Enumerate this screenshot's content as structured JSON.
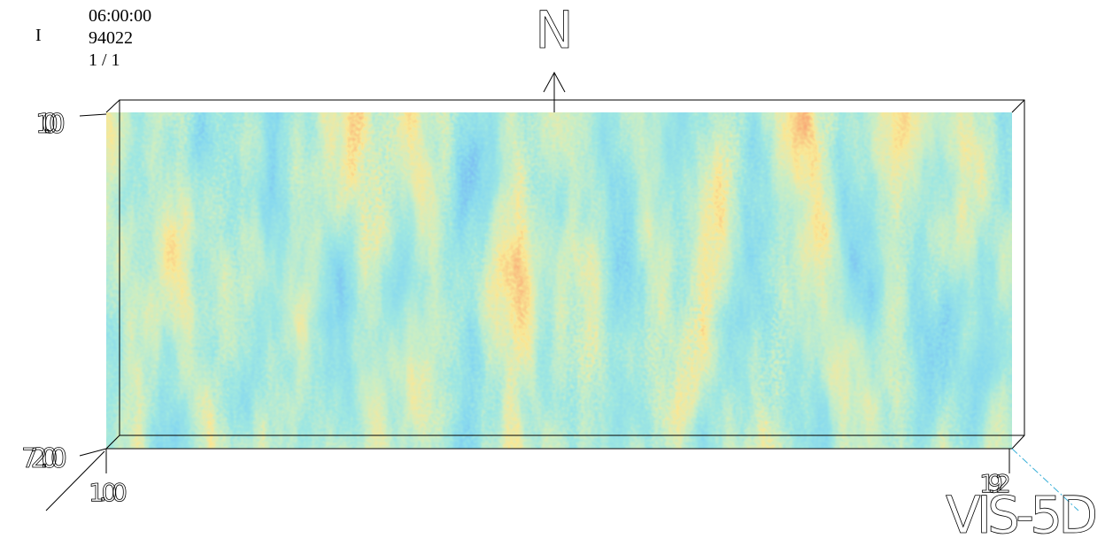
{
  "header": {
    "mode": "I",
    "time": "06:00:00",
    "date": "94022",
    "step": "1 / 1"
  },
  "compass": "N",
  "axes": {
    "row_top": "1.00",
    "row_bottom": "72.00",
    "col_left": "1.00",
    "col_right": "192"
  },
  "logo": "VIS-5D"
}
